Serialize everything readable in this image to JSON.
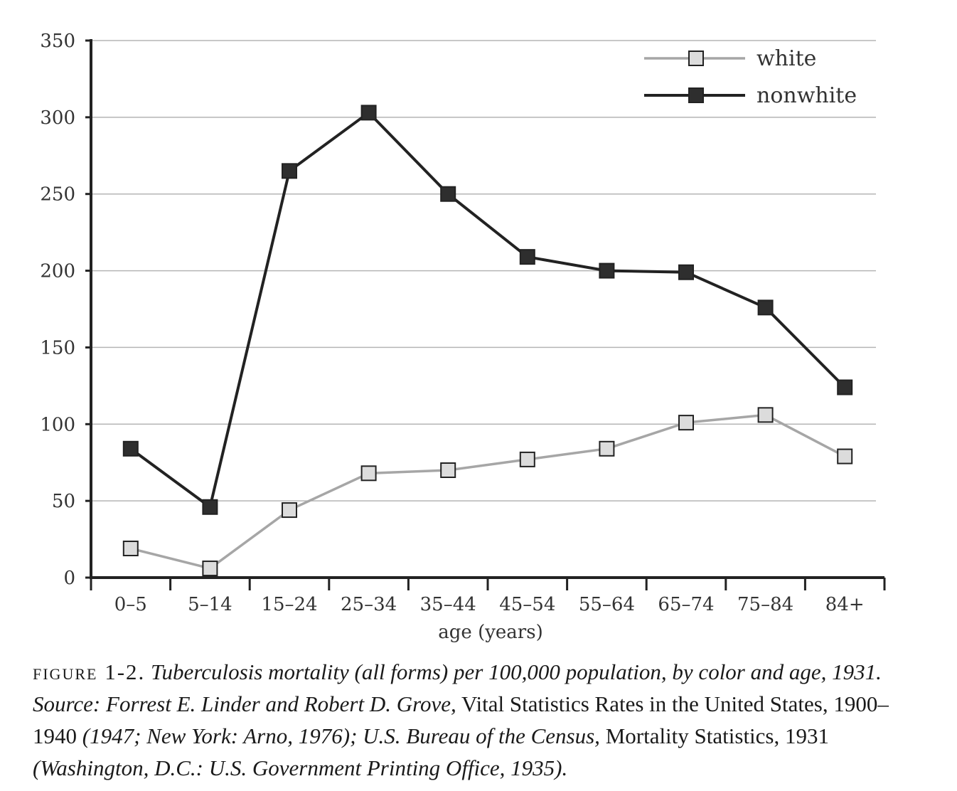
{
  "chart_data": {
    "type": "line",
    "categories": [
      "0–5",
      "5–14",
      "15–24",
      "25–34",
      "35–44",
      "45–54",
      "55–64",
      "65–74",
      "75–84",
      "84+"
    ],
    "series": [
      {
        "name": "white",
        "values": [
          19,
          6,
          44,
          68,
          70,
          77,
          84,
          101,
          106,
          79
        ],
        "color": "#a6a6a6",
        "marker_fill": "#dcdcdc"
      },
      {
        "name": "nonwhite",
        "values": [
          84,
          46,
          265,
          303,
          250,
          209,
          200,
          199,
          176,
          124
        ],
        "color": "#222222",
        "marker_fill": "#2e2e2e"
      }
    ],
    "xlabel": "age (years)",
    "ylabel": "",
    "ylim": [
      0,
      350
    ],
    "yticks": [
      "0",
      "50",
      "100",
      "150",
      "200",
      "250",
      "300",
      "350"
    ],
    "grid": true,
    "legend_position": "top-right"
  },
  "caption": {
    "label": "figure 1-2.",
    "part1": " Tuberculosis mortality (all forms) per 100,000 population, by color and age, 1931. Source: Forrest E. Linder and Robert D. Grove,",
    "part2": " Vital Statistics Rates in the United States, 1900–1940",
    "part3": " (1947; New York: Arno, 1976); U.S. Bureau of the Census,",
    "part4": " Mortality Statistics, 1931",
    "part5": " (Washington, D.C.: U.S. Government Printing Office, 1935)."
  }
}
